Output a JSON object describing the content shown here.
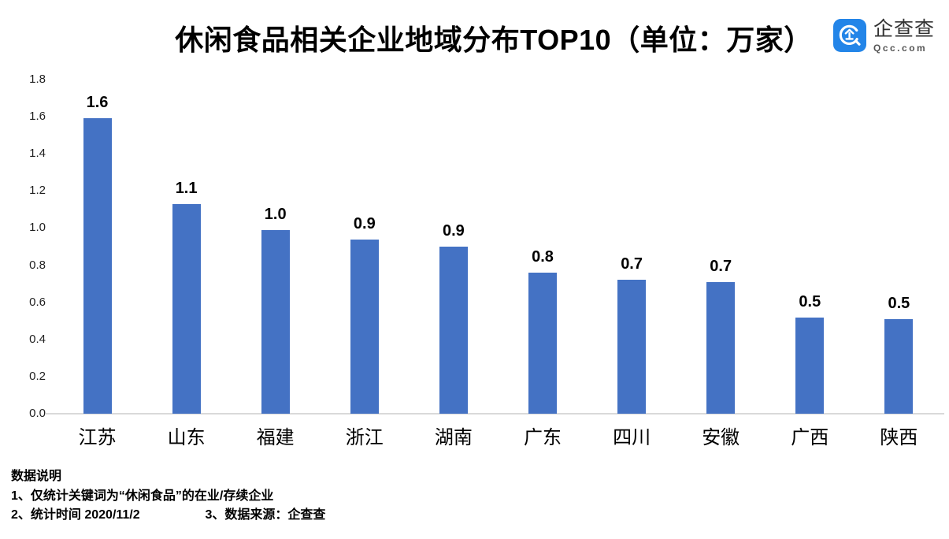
{
  "header": {
    "logo": {
      "brand_name": "企查查",
      "brand_domain": "Qcc.com",
      "icon": "qcc-logo-icon",
      "brand_color": "#2385E8"
    }
  },
  "chart_data": {
    "type": "bar",
    "title": "休闲食品相关企业地域分布TOP10（单位：万家）",
    "unit": "万家",
    "categories": [
      "江苏",
      "山东",
      "福建",
      "浙江",
      "湖南",
      "广东",
      "四川",
      "安徽",
      "广西",
      "陕西"
    ],
    "values": [
      1.59,
      1.13,
      0.99,
      0.94,
      0.9,
      0.76,
      0.72,
      0.71,
      0.52,
      0.51
    ],
    "data_labels": [
      "1.6",
      "1.1",
      "1.0",
      "0.9",
      "0.9",
      "0.8",
      "0.7",
      "0.7",
      "0.5",
      "0.5"
    ],
    "ylim": [
      0,
      1.8
    ],
    "ytick_labels": [
      "0.0",
      "0.2",
      "0.4",
      "0.6",
      "0.8",
      "1.0",
      "1.2",
      "1.4",
      "1.6",
      "1.8"
    ],
    "bar_color": "#4472C4",
    "axis_line_color": "#D9D9D9",
    "grid": false,
    "legend": false,
    "xlabel": "",
    "ylabel": ""
  },
  "footnotes": {
    "heading": "数据说明",
    "note1": "1、仅统计关键词为“休闲食品”的在业/存续企业",
    "note2": "2、统计时间 2020/11/2",
    "note3": "3、数据来源：企查查"
  }
}
